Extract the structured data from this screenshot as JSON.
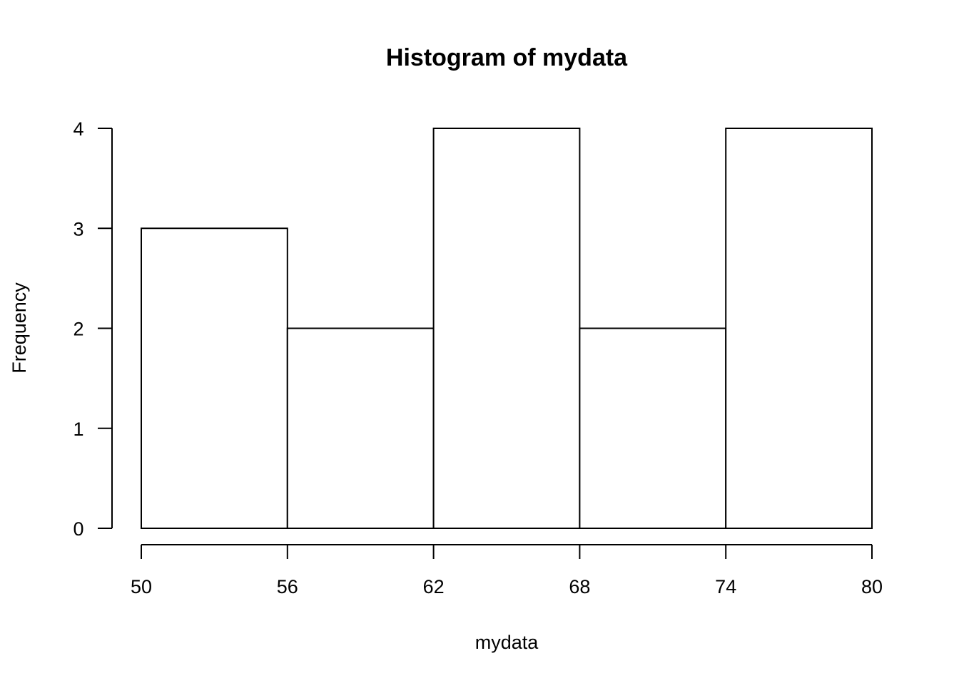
{
  "chart_data": {
    "type": "bar",
    "subtype": "histogram",
    "title": "Histogram of mydata",
    "xlabel": "mydata",
    "ylabel": "Frequency",
    "bins": [
      {
        "start": 50,
        "end": 56,
        "count": 3
      },
      {
        "start": 56,
        "end": 62,
        "count": 2
      },
      {
        "start": 62,
        "end": 68,
        "count": 4
      },
      {
        "start": 68,
        "end": 74,
        "count": 2
      },
      {
        "start": 74,
        "end": 80,
        "count": 4
      }
    ],
    "xlim": [
      50,
      80
    ],
    "ylim": [
      0,
      4
    ],
    "x_ticks": [
      "50",
      "56",
      "62",
      "68",
      "74",
      "80"
    ],
    "y_ticks": [
      "0",
      "1",
      "2",
      "3",
      "4"
    ],
    "grid": false,
    "colors": {
      "bar_fill": "#ffffff",
      "bar_stroke": "#000000",
      "axis": "#000000"
    }
  }
}
